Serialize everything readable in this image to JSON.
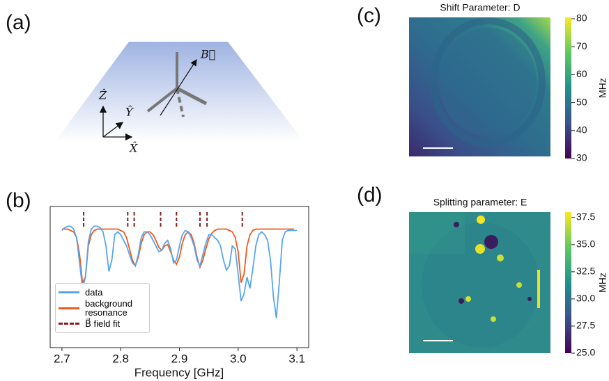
{
  "panel_labels": [
    "(a)",
    "(b)",
    "(c)",
    "(d)"
  ],
  "diagram": {
    "B": "B⃗",
    "Z": "Ẑ",
    "Y": "Ŷ",
    "X": "X̂"
  },
  "chart_data": [
    {
      "type": "line",
      "xlabel": "Frequency [GHz]",
      "x": [
        2.7,
        2.705,
        2.71,
        2.715,
        2.72,
        2.725,
        2.73,
        2.735,
        2.74,
        2.745,
        2.75,
        2.755,
        2.76,
        2.765,
        2.77,
        2.775,
        2.78,
        2.785,
        2.79,
        2.795,
        2.8,
        2.805,
        2.81,
        2.815,
        2.82,
        2.825,
        2.83,
        2.835,
        2.84,
        2.845,
        2.85,
        2.855,
        2.86,
        2.865,
        2.87,
        2.875,
        2.88,
        2.885,
        2.89,
        2.895,
        2.9,
        2.905,
        2.91,
        2.915,
        2.92,
        2.925,
        2.93,
        2.935,
        2.94,
        2.945,
        2.95,
        2.955,
        2.96,
        2.965,
        2.97,
        2.975,
        2.98,
        2.985,
        2.99,
        2.995,
        3.0,
        3.005,
        3.01,
        3.015,
        3.02,
        3.025,
        3.03,
        3.035,
        3.04,
        3.045,
        3.05,
        3.055,
        3.06,
        3.065,
        3.07,
        3.075,
        3.08,
        3.085,
        3.09,
        3.095,
        3.1
      ],
      "series": [
        {
          "name": "data",
          "color": "#56a6ee",
          "values": [
            0.83,
            0.85,
            0.86,
            0.86,
            0.84,
            0.78,
            0.6,
            0.42,
            0.5,
            0.75,
            0.84,
            0.86,
            0.86,
            0.85,
            0.82,
            0.72,
            0.54,
            0.62,
            0.8,
            0.82,
            0.8,
            0.76,
            0.72,
            0.66,
            0.6,
            0.58,
            0.66,
            0.78,
            0.82,
            0.82,
            0.8,
            0.76,
            0.72,
            0.68,
            0.69,
            0.74,
            0.76,
            0.7,
            0.6,
            0.62,
            0.72,
            0.8,
            0.83,
            0.82,
            0.78,
            0.72,
            0.62,
            0.58,
            0.66,
            0.74,
            0.8,
            0.8,
            0.78,
            0.76,
            0.72,
            0.62,
            0.55,
            0.58,
            0.72,
            0.7,
            0.52,
            0.33,
            0.38,
            0.5,
            0.42,
            0.56,
            0.72,
            0.8,
            0.82,
            0.8,
            0.76,
            0.62,
            0.36,
            0.21,
            0.46,
            0.76,
            0.82,
            0.83,
            0.83,
            0.83,
            0.83
          ]
        },
        {
          "name": "background resonance",
          "color": "#f05a1c",
          "values": [
            0.84,
            0.84,
            0.84,
            0.83,
            0.82,
            0.78,
            0.66,
            0.46,
            0.5,
            0.72,
            0.8,
            0.83,
            0.84,
            0.84,
            0.84,
            0.84,
            0.84,
            0.84,
            0.84,
            0.84,
            0.83,
            0.82,
            0.78,
            0.7,
            0.62,
            0.58,
            0.64,
            0.74,
            0.8,
            0.82,
            0.82,
            0.8,
            0.76,
            0.71,
            0.69,
            0.72,
            0.73,
            0.68,
            0.62,
            0.59,
            0.64,
            0.74,
            0.8,
            0.82,
            0.8,
            0.74,
            0.64,
            0.57,
            0.62,
            0.7,
            0.77,
            0.81,
            0.83,
            0.84,
            0.84,
            0.84,
            0.84,
            0.83,
            0.82,
            0.78,
            0.68,
            0.46,
            0.52,
            0.72,
            0.8,
            0.83,
            0.84,
            0.84,
            0.84,
            0.84,
            0.84,
            0.84,
            0.84,
            0.84,
            0.84,
            0.84,
            0.84,
            0.84,
            0.84,
            0.84,
            null
          ]
        }
      ],
      "vlines": {
        "name": "B⃗ field fit",
        "color": "#8b1a1a",
        "x": [
          2.737,
          2.812,
          2.823,
          2.868,
          2.895,
          2.935,
          2.947,
          3.007
        ]
      },
      "xlim": [
        2.68,
        3.12
      ],
      "xticks": [
        2.7,
        2.8,
        2.9,
        {
          "value": 3,
          "label": "3.0"
        },
        3.1
      ],
      "ylim": [
        0,
        1
      ]
    },
    {
      "type": "heatmap",
      "title": "Shift Parameter: D",
      "colorbar_label": "MHz",
      "colormap": "viridis",
      "clim": [
        30,
        80.5
      ],
      "cticks": [
        30,
        40,
        50,
        60,
        70,
        80
      ]
    },
    {
      "type": "heatmap",
      "title": "Splitting parameter: E",
      "colorbar_label": "MHz",
      "colormap": "viridis",
      "clim": [
        25,
        38
      ],
      "cticks": [
        {
          "value": 25,
          "label": "25.0"
        },
        27.5,
        {
          "value": 30,
          "label": "30.0"
        },
        32.5,
        {
          "value": 35,
          "label": "35.0"
        },
        37.5
      ]
    }
  ]
}
